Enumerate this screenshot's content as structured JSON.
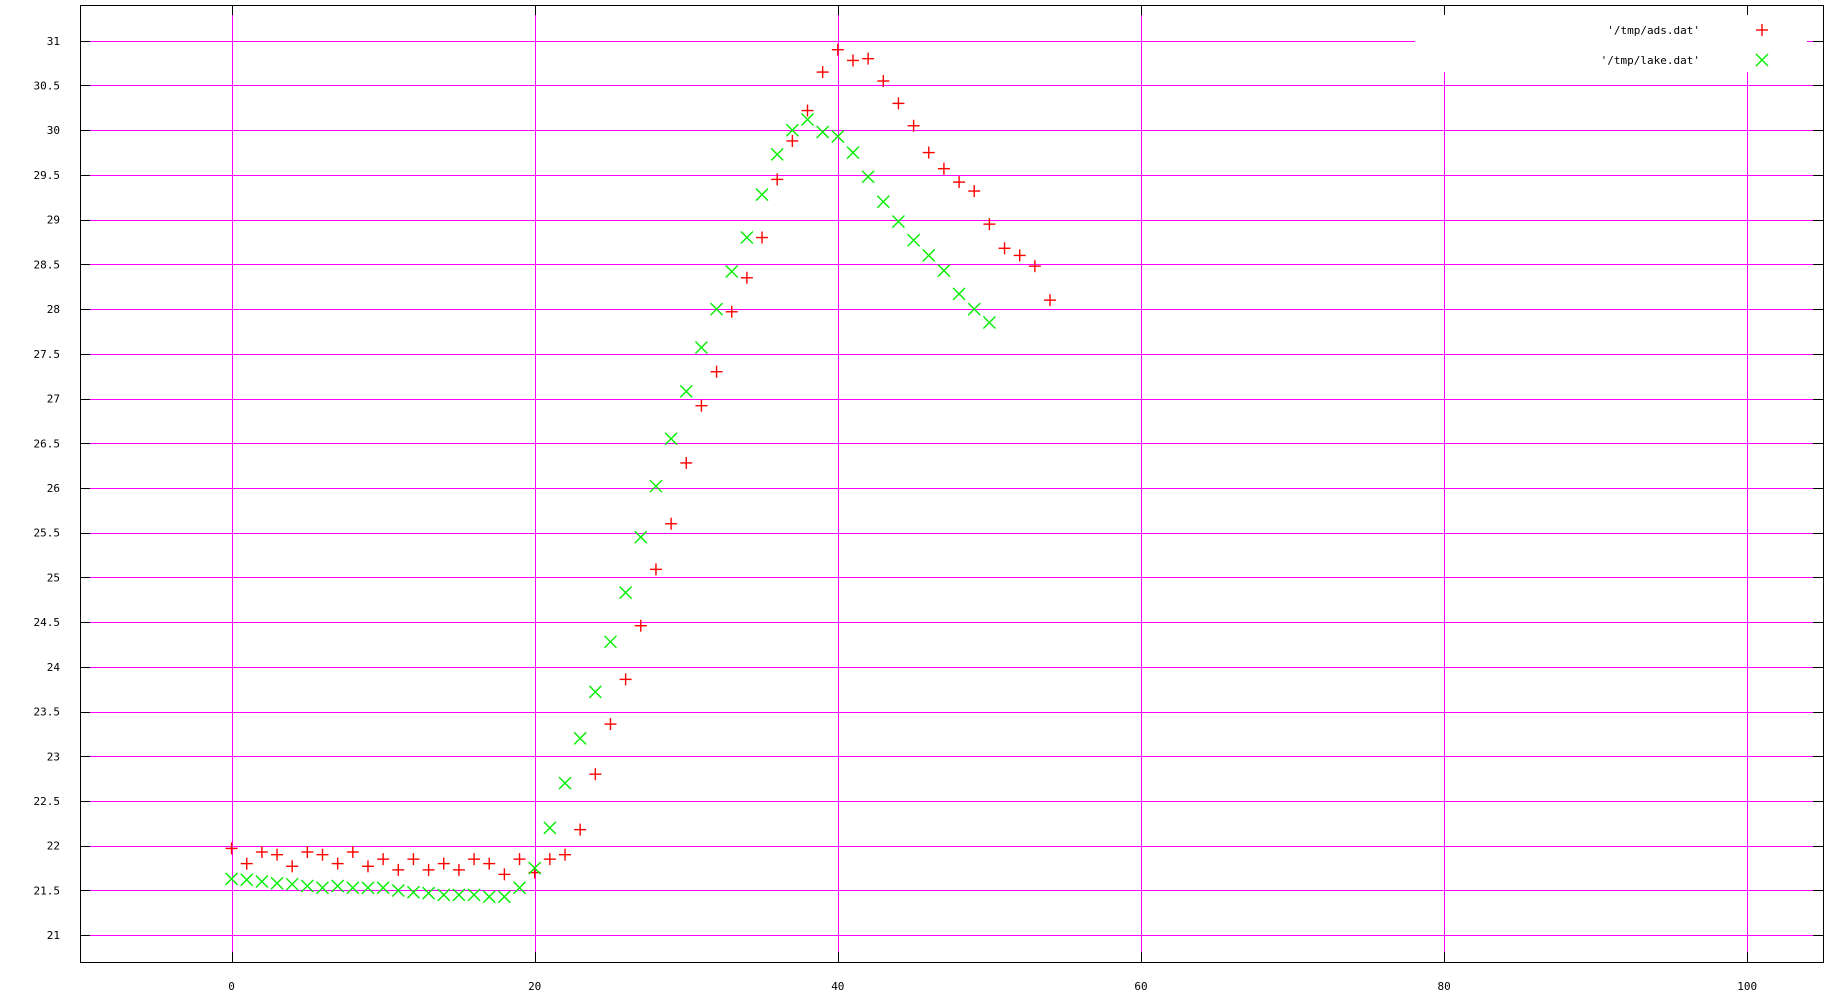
{
  "chart_data": {
    "type": "scatter",
    "title": "",
    "xlabel": "",
    "ylabel": "",
    "xlim": [
      -10,
      105
    ],
    "ylim": [
      20.7,
      31.4
    ],
    "grid": true,
    "legend_position": "top-right",
    "x_ticks": [
      0,
      20,
      40,
      60,
      80,
      100
    ],
    "y_ticks": [
      21,
      21.5,
      22,
      22.5,
      23,
      23.5,
      24,
      24.5,
      25,
      25.5,
      26,
      26.5,
      27,
      27.5,
      28,
      28.5,
      29,
      29.5,
      30,
      30.5,
      31
    ],
    "y_tick_labels": [
      "21",
      "21.5",
      "22",
      "22.5",
      "23",
      "23.5",
      "24",
      "24.5",
      "25",
      "25.5",
      "26",
      "26.5",
      "27",
      "27.5",
      "28",
      "28.5",
      "29",
      "29.5",
      "30",
      "30.5",
      "31"
    ],
    "series": [
      {
        "name": "'/tmp/ads.dat'",
        "marker": "plus",
        "color": "#ff0000",
        "x": [
          0,
          1,
          2,
          3,
          4,
          5,
          6,
          7,
          8,
          9,
          10,
          11,
          12,
          13,
          14,
          15,
          16,
          17,
          18,
          19,
          20,
          21,
          22,
          23,
          24,
          25,
          26,
          27,
          28,
          29,
          30,
          31,
          32,
          33,
          34,
          35,
          36,
          37,
          38,
          39,
          40,
          41,
          42,
          43,
          44,
          45,
          46,
          47,
          48,
          49,
          50,
          51,
          52,
          53,
          54
        ],
        "y": [
          21.97,
          21.8,
          21.93,
          21.9,
          21.77,
          21.93,
          21.9,
          21.8,
          21.93,
          21.77,
          21.85,
          21.73,
          21.85,
          21.73,
          21.8,
          21.73,
          21.85,
          21.8,
          21.68,
          21.85,
          21.7,
          21.85,
          21.9,
          22.18,
          22.8,
          23.36,
          23.86,
          24.46,
          25.09,
          25.6,
          26.28,
          26.92,
          27.3,
          27.97,
          28.35,
          28.8,
          29.45,
          29.88,
          30.22,
          30.65,
          30.9,
          30.78,
          30.8,
          30.55,
          30.3,
          30.05,
          29.75,
          29.57,
          29.42,
          29.32,
          28.95,
          28.68,
          28.6,
          28.48,
          28.1
        ]
      },
      {
        "name": "'/tmp/lake.dat'",
        "marker": "cross",
        "color": "#00ee00",
        "x": [
          0,
          1,
          2,
          3,
          4,
          5,
          6,
          7,
          8,
          9,
          10,
          11,
          12,
          13,
          14,
          15,
          16,
          17,
          18,
          19,
          20,
          21,
          22,
          23,
          24,
          25,
          26,
          27,
          28,
          29,
          30,
          31,
          32,
          33,
          34,
          35,
          36,
          37,
          38,
          39,
          40,
          41,
          42,
          43,
          44,
          45,
          46,
          47,
          48,
          49,
          50
        ],
        "y": [
          21.63,
          21.62,
          21.6,
          21.58,
          21.57,
          21.55,
          21.53,
          21.55,
          21.53,
          21.53,
          21.53,
          21.5,
          21.48,
          21.47,
          21.45,
          21.45,
          21.45,
          21.43,
          21.43,
          21.53,
          21.75,
          22.2,
          22.7,
          23.2,
          23.72,
          24.28,
          24.83,
          25.45,
          26.02,
          26.55,
          27.08,
          27.57,
          28.0,
          28.42,
          28.8,
          29.28,
          29.73,
          30.0,
          30.12,
          29.98,
          29.93,
          29.75,
          29.48,
          29.2,
          28.98,
          28.77,
          28.6,
          28.43,
          28.17,
          28.0,
          27.85
        ]
      }
    ]
  },
  "colors": {
    "grid": "#ff00ff",
    "axis": "#000000",
    "background": "#ffffff"
  }
}
